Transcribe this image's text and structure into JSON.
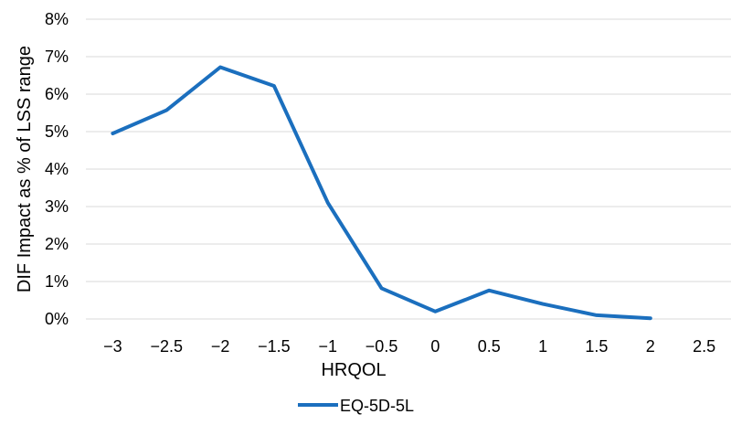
{
  "chart_data": {
    "type": "line",
    "xlabel": "HRQOL",
    "ylabel": "DIF Impact as % of LSS range",
    "x_ticks": [
      "−3",
      "−2.5",
      "−2",
      "−1.5",
      "−1",
      "−0.5",
      "0",
      "0.5",
      "1",
      "1.5",
      "2",
      "2.5"
    ],
    "y_ticks": [
      "0%",
      "1%",
      "2%",
      "3%",
      "4%",
      "5%",
      "6%",
      "7%",
      "8%"
    ],
    "ylim": [
      0,
      8
    ],
    "x_domain": [
      -3,
      2.5
    ],
    "grid": "horizontal",
    "legend_position": "bottom",
    "series": [
      {
        "name": "EQ-5D-5L",
        "color": "#1b6fbe",
        "x": [
          -3,
          -2.5,
          -2,
          -1.5,
          -1,
          -0.5,
          0,
          0.5,
          1,
          1.5,
          2
        ],
        "y": [
          4.95,
          5.57,
          6.72,
          6.22,
          3.1,
          0.82,
          0.2,
          0.76,
          0.4,
          0.1,
          0.02
        ]
      }
    ]
  }
}
